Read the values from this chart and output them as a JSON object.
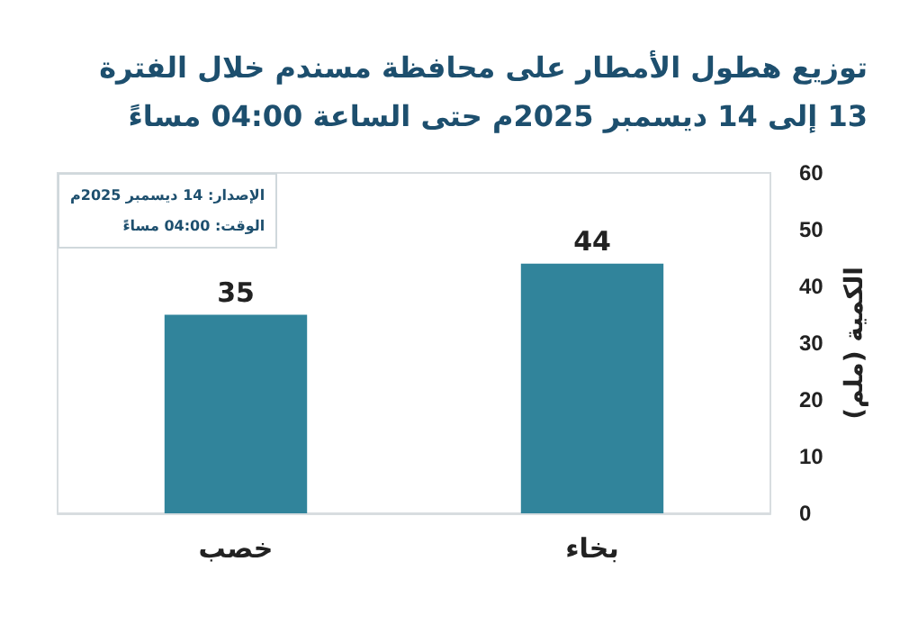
{
  "chart_data": {
    "type": "bar",
    "title": "توزيع هطول الأمطار على محافظة مسندم خلال الفترة 13 إلى 14 ديسمبر 2025م حتى الساعة 04:00 مساءً",
    "ylabel": "الكمية (ملم)",
    "categories": [
      "خصب",
      "بخاء"
    ],
    "values": [
      35,
      44
    ],
    "color": "#31849b",
    "data_labels": true,
    "ylim": [
      0,
      60
    ],
    "yticks": [
      0,
      10,
      20,
      30,
      40,
      50,
      60
    ],
    "grid": false,
    "annotations": [
      "الإصدار: 14 ديسمبر 2025م",
      "الوقت: 04:00 مساءً"
    ]
  }
}
